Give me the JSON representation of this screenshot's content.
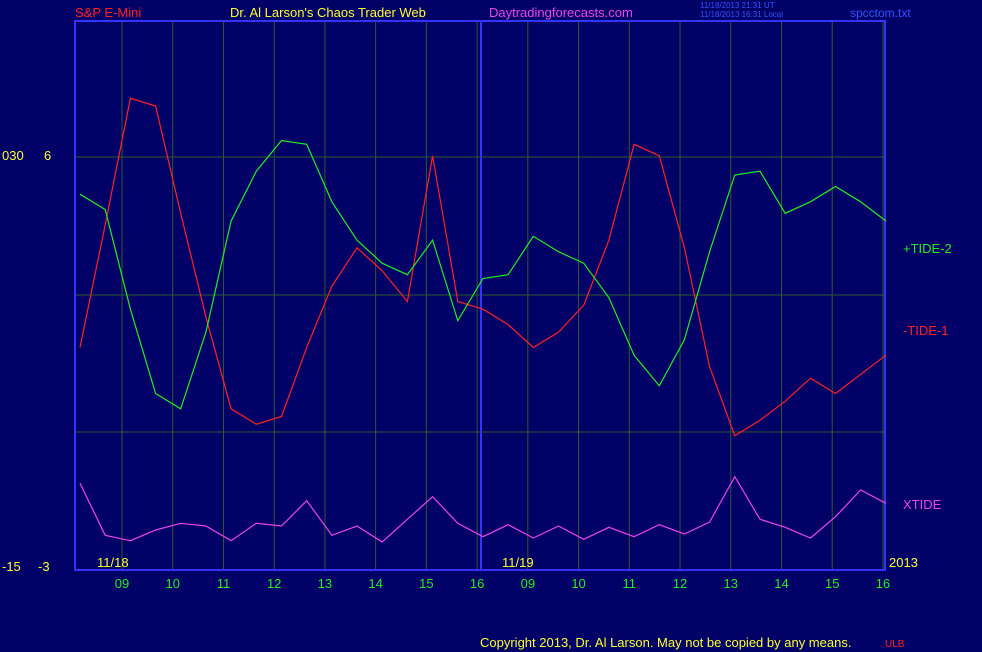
{
  "header": {
    "symbol": "S&P E-Mini",
    "title": "Dr. Al Larson's Chaos Trader Web",
    "site": "Daytradingforecasts.com",
    "time_utc": "11/18/2013 21:31 UT",
    "time_local": "11/18/2013 16:31 Local",
    "file": "spcctom.txt"
  },
  "footer": {
    "copyright": "Copyright 2013, Dr. Al Larson. May not be copied by any means.",
    "mark": "ULB"
  },
  "colors": {
    "background": "#000066",
    "frame": "#3333ff",
    "grid": "#2f5a2f",
    "tide1": "#ff2222",
    "tide2": "#22ee22",
    "xtide": "#ee44ee",
    "axis_text": "#ffff33",
    "hour_text": "#22ee22"
  },
  "chart_data": {
    "type": "line",
    "left_axis": {
      "outer_ticks": [
        "030",
        "-15"
      ],
      "inner_ticks": [
        "6",
        "-3"
      ]
    },
    "date_labels": [
      "11/18",
      "11/19"
    ],
    "year_label": "2013",
    "x_hours": [
      "09",
      "10",
      "11",
      "12",
      "13",
      "14",
      "15",
      "16",
      "09",
      "10",
      "11",
      "12",
      "13",
      "14",
      "15",
      "16"
    ],
    "series": [
      {
        "name": "+TIDE-2",
        "x": [
          0,
          0.5,
          1,
          1.5,
          2,
          2.5,
          3,
          3.5,
          4,
          4.5,
          5,
          5.5,
          6,
          6.5,
          7,
          7.5,
          8,
          8.5,
          9,
          9.5,
          10,
          10.5,
          11,
          11.5,
          12,
          12.5,
          13,
          13.5,
          14,
          14.5,
          15,
          15.5,
          16
        ],
        "y": [
          3.0,
          2.6,
          0.0,
          -2.2,
          -2.6,
          -0.6,
          2.3,
          3.6,
          4.4,
          4.3,
          2.8,
          1.8,
          1.2,
          0.9,
          1.8,
          -0.3,
          0.8,
          0.9,
          1.9,
          1.5,
          1.2,
          0.3,
          -1.2,
          -2.0,
          -0.8,
          1.5,
          3.5,
          3.6,
          2.5,
          2.8,
          3.2,
          2.8,
          2.3
        ],
        "ylim": [
          -5.5,
          6.5
        ]
      },
      {
        "name": "-TIDE-1",
        "x": [
          0,
          0.5,
          1,
          1.5,
          2,
          2.5,
          3,
          3.5,
          4,
          4.5,
          5,
          5.5,
          6,
          6.5,
          7,
          7.5,
          8,
          8.5,
          9,
          9.5,
          10,
          10.5,
          11,
          11.5,
          12,
          12.5,
          13,
          13.5,
          14,
          14.5,
          15,
          15.5,
          16
        ],
        "y": [
          -1.0,
          2.2,
          5.5,
          5.3,
          2.5,
          -0.2,
          -2.6,
          -3.0,
          -2.8,
          -1.0,
          0.6,
          1.6,
          1.0,
          0.2,
          4.0,
          0.2,
          0.0,
          -0.4,
          -1.0,
          -0.6,
          0.1,
          1.8,
          4.3,
          4.0,
          1.6,
          -1.5,
          -3.3,
          -2.9,
          -2.4,
          -1.8,
          -2.2,
          -1.7,
          -1.2
        ],
        "ylim": [
          -5.5,
          6.5
        ]
      },
      {
        "name": "XTIDE",
        "x": [
          0,
          0.5,
          1,
          1.5,
          2,
          2.5,
          3,
          3.5,
          4,
          4.5,
          5,
          5.5,
          6,
          6.5,
          7,
          7.5,
          8,
          8.5,
          9,
          9.5,
          10,
          10.5,
          11,
          11.5,
          12,
          12.5,
          13,
          13.5,
          14,
          14.5,
          15,
          15.5,
          16
        ],
        "y": [
          3.5,
          -0.4,
          -0.8,
          0.0,
          0.5,
          0.3,
          -0.8,
          0.5,
          0.3,
          2.2,
          -0.4,
          0.3,
          -0.9,
          0.8,
          2.5,
          0.5,
          -0.5,
          0.4,
          -0.6,
          0.3,
          -0.7,
          0.2,
          -0.5,
          0.4,
          -0.3,
          0.6,
          4.0,
          0.8,
          0.2,
          -0.6,
          1.0,
          3.0,
          2.0
        ],
        "ylim": [
          -3,
          6
        ]
      }
    ]
  }
}
